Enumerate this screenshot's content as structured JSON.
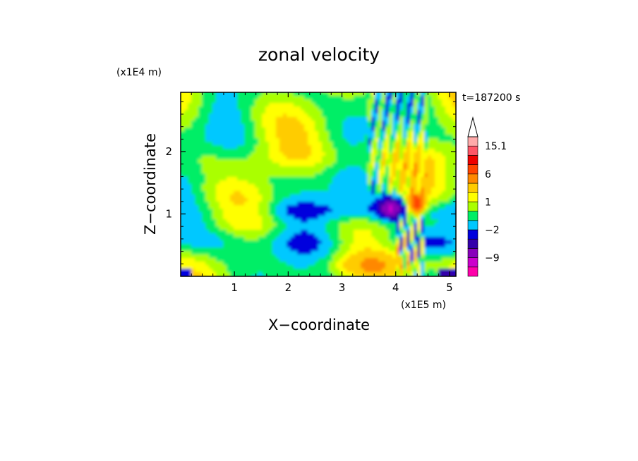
{
  "chart_data": {
    "type": "heatmap",
    "title": "zonal velocity",
    "xlabel": "X−coordinate",
    "ylabel": "Z−coordinate",
    "x_scale_label": "(x1E5 m)",
    "y_scale_label": "(x1E4 m)",
    "time_label": "t=187200 s",
    "xlim": [
      0,
      5.12
    ],
    "ylim": [
      0,
      2.95
    ],
    "x_ticks": [
      1,
      2,
      3,
      4,
      5
    ],
    "x_tick_labels": [
      "1",
      "2",
      "3",
      "4",
      "5"
    ],
    "y_ticks": [
      1,
      2
    ],
    "y_tick_labels": [
      "1",
      "2"
    ],
    "colorbar": {
      "levels": [
        -15.1,
        -12,
        -9,
        -6,
        -4,
        -2,
        -1,
        0,
        1,
        2,
        4,
        6,
        9,
        12,
        15.1
      ],
      "colors": [
        "#ff00aa",
        "#cc00cc",
        "#8800bb",
        "#3300aa",
        "#0000dd",
        "#00c8ff",
        "#00ee66",
        "#aaff00",
        "#ffff00",
        "#ffcc00",
        "#ff8800",
        "#ff4400",
        "#ee0000",
        "#ff5566",
        "#ffaaaa"
      ],
      "tick_labels": [
        {
          "level": 15.1,
          "text": "15.1"
        },
        {
          "level": 6,
          "text": "6"
        },
        {
          "level": 1,
          "text": "1"
        },
        {
          "level": -2,
          "text": "−2"
        },
        {
          "level": -9,
          "text": "−9"
        }
      ],
      "extend": "max"
    }
  }
}
